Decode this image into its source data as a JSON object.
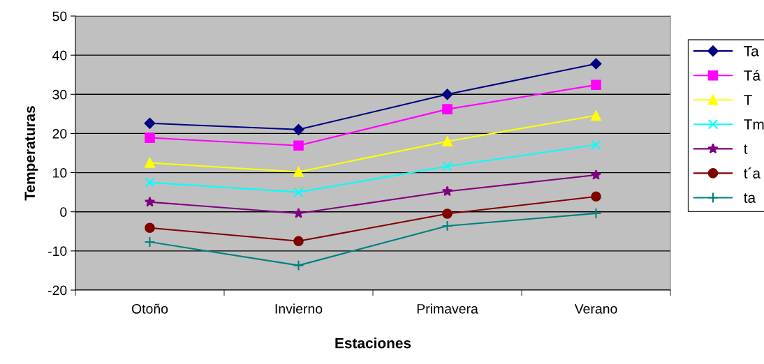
{
  "chart_data": {
    "type": "line",
    "xlabel": "Estaciones",
    "ylabel": "Temperaturas",
    "categories": [
      "Otoño",
      "Invierno",
      "Primavera",
      "Verano"
    ],
    "series": [
      {
        "name": "Ta",
        "color": "#000080",
        "marker": "diamond",
        "values": [
          22.6,
          21.0,
          30.0,
          37.8
        ]
      },
      {
        "name": "Tá",
        "color": "#ff00ff",
        "marker": "square",
        "values": [
          18.9,
          16.9,
          26.2,
          32.4
        ]
      },
      {
        "name": "T",
        "color": "#ffff00",
        "marker": "triangle",
        "values": [
          12.5,
          10.2,
          18.0,
          24.6
        ]
      },
      {
        "name": "Tm",
        "color": "#00ffff",
        "marker": "cross",
        "values": [
          7.5,
          5.0,
          11.6,
          17.1
        ]
      },
      {
        "name": "t",
        "color": "#800080",
        "marker": "star",
        "values": [
          2.5,
          -0.4,
          5.2,
          9.4
        ]
      },
      {
        "name": "t´a",
        "color": "#800000",
        "marker": "circle",
        "values": [
          -4.1,
          -7.5,
          -0.5,
          3.9
        ]
      },
      {
        "name": "ta",
        "color": "#008080",
        "marker": "plus",
        "values": [
          -7.7,
          -13.7,
          -3.6,
          -0.4
        ]
      }
    ],
    "ylim": [
      -20,
      50
    ],
    "yticks": [
      -20,
      -10,
      0,
      10,
      20,
      30,
      40,
      50
    ],
    "grid": "y",
    "legend": "right",
    "line_style": "solid"
  }
}
